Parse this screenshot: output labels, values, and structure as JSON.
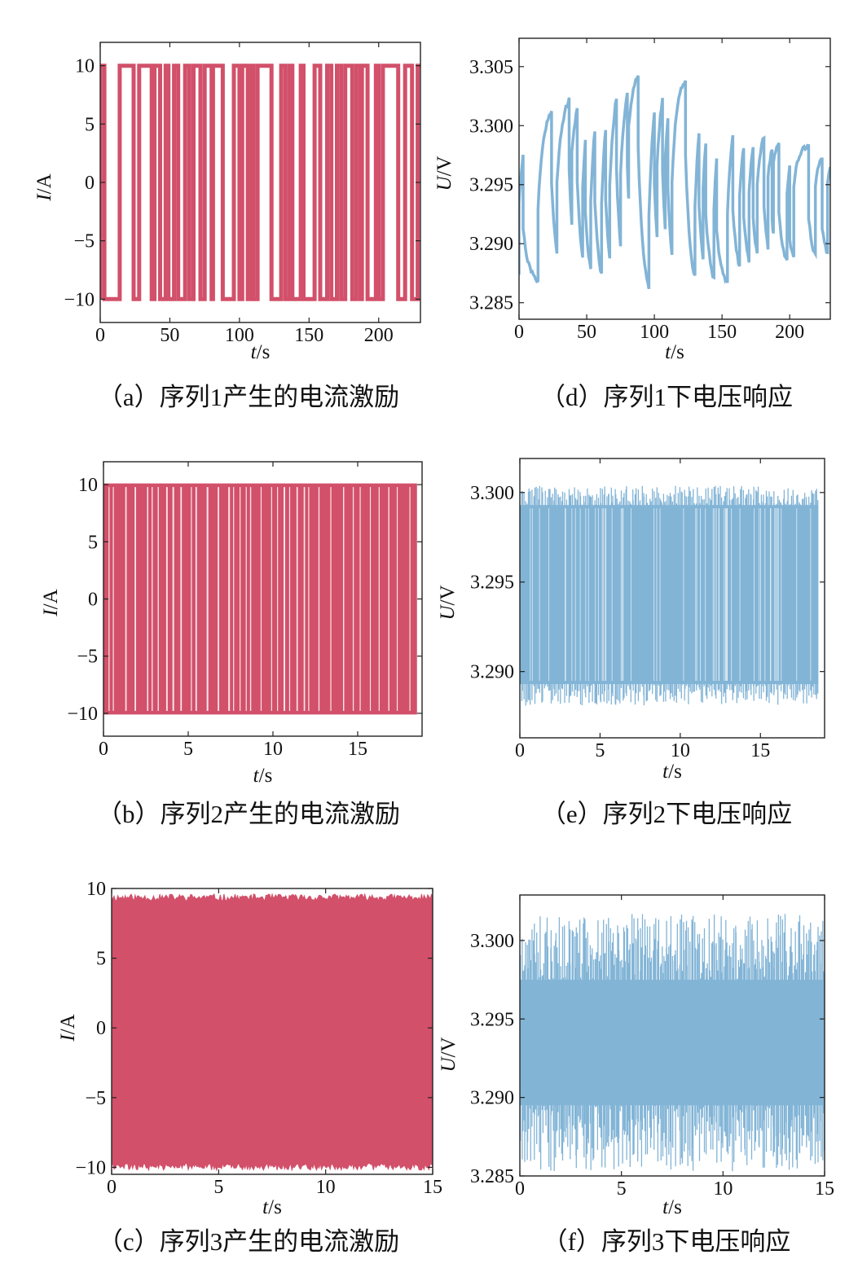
{
  "colors": {
    "current": "#d2506a",
    "voltage": "#82b4d6",
    "axis": "#222222"
  },
  "chart_data": [
    {
      "id": "a",
      "type": "line",
      "caption": "（a）序列1产生的电流激励",
      "xlabel_var": "t",
      "xlabel_unit": "/s",
      "ylabel_var": "I",
      "ylabel_unit": "/A",
      "xlim": [
        0,
        230
      ],
      "ylim": [
        -12,
        12
      ],
      "xticks": [
        0,
        50,
        100,
        150,
        200
      ],
      "yticks": [
        10,
        5,
        0,
        -5,
        -10
      ],
      "ytick_labels": [
        "10",
        "5",
        "0",
        "−5",
        "−10"
      ],
      "style": "square_wave",
      "amplitude": 10,
      "duration": 230,
      "transitions": [
        0,
        3,
        14,
        24,
        28,
        37,
        39,
        43,
        47,
        49,
        53,
        56,
        61,
        64,
        67,
        72,
        75,
        80,
        81,
        88,
        96,
        100,
        102,
        106,
        108,
        110,
        113,
        123,
        130,
        133,
        136,
        138,
        144,
        146,
        154,
        158,
        163,
        166,
        170,
        173,
        176,
        181,
        184,
        187,
        188,
        192,
        198,
        200,
        203,
        214,
        219,
        224,
        228
      ]
    },
    {
      "id": "b",
      "type": "line",
      "caption": "（b）序列2产生的电流激励",
      "xlabel_var": "t",
      "xlabel_unit": "/s",
      "ylabel_var": "I",
      "ylabel_unit": "/A",
      "xlim": [
        0,
        18.8
      ],
      "ylim": [
        -12,
        12
      ],
      "xticks": [
        0,
        5,
        10,
        15
      ],
      "yticks": [
        10,
        5,
        0,
        -5,
        -10
      ],
      "ytick_labels": [
        "10",
        "5",
        "0",
        "−5",
        "−10"
      ],
      "style": "dense_square",
      "amplitude": 10,
      "duration": 18.5
    },
    {
      "id": "c",
      "type": "line",
      "caption": "（c）序列3产生的电流激励",
      "xlabel_var": "t",
      "xlabel_unit": "/s",
      "ylabel_var": "I",
      "ylabel_unit": "/A",
      "xlim": [
        0,
        15
      ],
      "ylim": [
        -10.5,
        10
      ],
      "xticks": [
        0,
        5,
        10,
        15
      ],
      "yticks": [
        10,
        5,
        0,
        -5,
        -10
      ],
      "ytick_labels": [
        "10",
        "5",
        "0",
        "−5",
        "−10"
      ],
      "style": "noise_fill",
      "band": [
        -9.6,
        9.0
      ],
      "duration": 15
    },
    {
      "id": "d",
      "type": "line",
      "caption": "（d）序列1下电压响应",
      "xlabel_var": "t",
      "xlabel_unit": "/s",
      "ylabel_var": "U",
      "ylabel_unit": "/V",
      "xlim": [
        0,
        230
      ],
      "ylim": [
        3.2836,
        3.3074
      ],
      "xticks": [
        0,
        50,
        100,
        150,
        200
      ],
      "yticks": [
        3.305,
        3.3,
        3.295,
        3.29,
        3.285
      ],
      "ytick_labels": [
        "3.305",
        "3.300",
        "3.295",
        "3.290",
        "3.285"
      ],
      "style": "voltage_response",
      "duration": 230
    },
    {
      "id": "e",
      "type": "line",
      "caption": "（e）序列2下电压响应",
      "xlabel_var": "t",
      "xlabel_unit": "/s",
      "ylabel_var": "U",
      "ylabel_unit": "/V",
      "xlim": [
        0,
        19
      ],
      "ylim": [
        3.2863,
        3.3019
      ],
      "xticks": [
        0,
        5,
        10,
        15
      ],
      "yticks": [
        3.3,
        3.295,
        3.29
      ],
      "ytick_labels": [
        "3.300",
        "3.295",
        "3.290"
      ],
      "style": "dense_band",
      "band_high": 3.2993,
      "band_low": 3.2893,
      "duration": 18.6
    },
    {
      "id": "f",
      "type": "line",
      "caption": "（f）序列3下电压响应",
      "xlabel_var": "t",
      "xlabel_unit": "/s",
      "ylabel_var": "U",
      "ylabel_unit": "/V",
      "xlim": [
        0,
        15
      ],
      "ylim": [
        3.285,
        3.3029
      ],
      "xticks": [
        0,
        5,
        10,
        15
      ],
      "yticks": [
        3.3,
        3.295,
        3.29,
        3.285
      ],
      "ytick_labels": [
        "3.300",
        "3.295",
        "3.290",
        "3.285"
      ],
      "style": "noise_band",
      "band_high": 3.2975,
      "band_low": 3.2895,
      "duration": 15
    }
  ]
}
